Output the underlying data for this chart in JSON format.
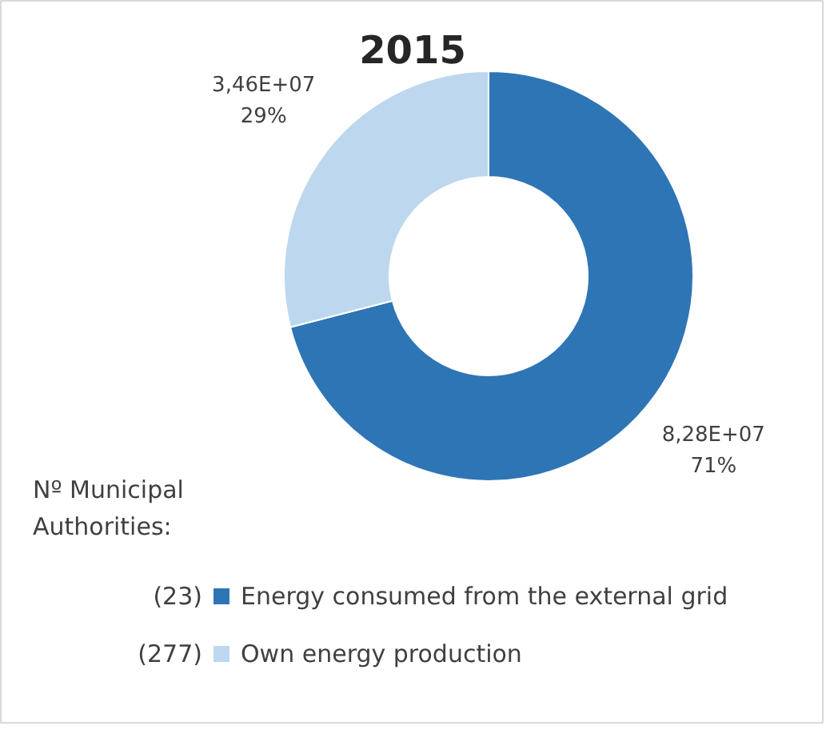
{
  "chart_data": {
    "type": "donut",
    "title": "2015",
    "categories": [
      "Energy consumed from the external grid",
      "Own energy production"
    ],
    "values": [
      71,
      29
    ],
    "colors": [
      "#2e75b6",
      "#bdd7ee"
    ],
    "value_labels": [
      "8,28E+07\n71%",
      "3,46E+07\n29%"
    ],
    "legend": "bottom",
    "legend_title": "Nº Municipal Authorities:",
    "annotations": [
      "(23)",
      "(277)"
    ]
  }
}
